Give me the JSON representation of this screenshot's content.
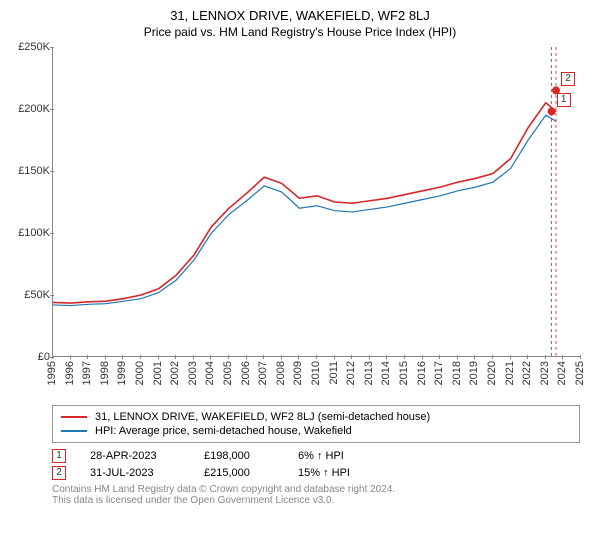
{
  "title": "31, LENNOX DRIVE, WAKEFIELD, WF2 8LJ",
  "subtitle": "Price paid vs. HM Land Registry's House Price Index (HPI)",
  "chart": {
    "type": "line",
    "ylim": [
      0,
      250000
    ],
    "ytick_step": 50000,
    "ytick_labels": [
      "£0",
      "£50K",
      "£100K",
      "£150K",
      "£200K",
      "£250K"
    ],
    "xlim": [
      1995,
      2025
    ],
    "xticks": [
      1995,
      1996,
      1997,
      1998,
      1999,
      2000,
      2001,
      2002,
      2003,
      2004,
      2005,
      2006,
      2007,
      2008,
      2009,
      2010,
      2011,
      2012,
      2013,
      2014,
      2015,
      2016,
      2017,
      2018,
      2019,
      2020,
      2021,
      2022,
      2023,
      2024,
      2025
    ],
    "background_color": "#ffffff",
    "axis_color": "#888888",
    "series": [
      {
        "name": "31, LENNOX DRIVE, WAKEFIELD, WF2 8LJ (semi-detached house)",
        "color": "#d62728",
        "width": 1.6,
        "data": [
          [
            1995,
            44000
          ],
          [
            1996,
            43500
          ],
          [
            1997,
            44500
          ],
          [
            1998,
            45000
          ],
          [
            1999,
            47000
          ],
          [
            2000,
            50000
          ],
          [
            2001,
            55000
          ],
          [
            2002,
            66000
          ],
          [
            2003,
            82000
          ],
          [
            2004,
            105000
          ],
          [
            2005,
            120000
          ],
          [
            2006,
            132000
          ],
          [
            2007,
            145000
          ],
          [
            2008,
            140000
          ],
          [
            2009,
            128000
          ],
          [
            2010,
            130000
          ],
          [
            2011,
            125000
          ],
          [
            2012,
            124000
          ],
          [
            2013,
            126000
          ],
          [
            2014,
            128000
          ],
          [
            2015,
            131000
          ],
          [
            2016,
            134000
          ],
          [
            2017,
            137000
          ],
          [
            2018,
            141000
          ],
          [
            2019,
            144000
          ],
          [
            2020,
            148000
          ],
          [
            2021,
            160000
          ],
          [
            2022,
            185000
          ],
          [
            2023,
            205000
          ],
          [
            2023.6,
            198000
          ]
        ]
      },
      {
        "name": "HPI: Average price, semi-detached house, Wakefield",
        "color": "#1f77b4",
        "width": 1.2,
        "data": [
          [
            1995,
            42000
          ],
          [
            1996,
            41500
          ],
          [
            1997,
            42500
          ],
          [
            1998,
            43000
          ],
          [
            1999,
            45000
          ],
          [
            2000,
            47000
          ],
          [
            2001,
            52000
          ],
          [
            2002,
            62000
          ],
          [
            2003,
            78000
          ],
          [
            2004,
            100000
          ],
          [
            2005,
            115000
          ],
          [
            2006,
            126000
          ],
          [
            2007,
            138000
          ],
          [
            2008,
            133000
          ],
          [
            2009,
            120000
          ],
          [
            2010,
            122000
          ],
          [
            2011,
            118000
          ],
          [
            2012,
            117000
          ],
          [
            2013,
            119000
          ],
          [
            2014,
            121000
          ],
          [
            2015,
            124000
          ],
          [
            2016,
            127000
          ],
          [
            2017,
            130000
          ],
          [
            2018,
            134000
          ],
          [
            2019,
            137000
          ],
          [
            2020,
            141000
          ],
          [
            2021,
            152000
          ],
          [
            2022,
            175000
          ],
          [
            2023,
            195000
          ],
          [
            2023.6,
            190000
          ]
        ]
      }
    ],
    "sale_markers": [
      {
        "n": "1",
        "x": 2023.33,
        "y": 198000,
        "color": "#d62728"
      },
      {
        "n": "2",
        "x": 2023.58,
        "y": 215000,
        "color": "#d62728"
      }
    ],
    "marker_guide_color": "#d62728",
    "marker_guide_dash": "3,3"
  },
  "legend": {
    "items": [
      {
        "label": "31, LENNOX DRIVE, WAKEFIELD, WF2 8LJ (semi-detached house)",
        "color": "#d62728"
      },
      {
        "label": "HPI: Average price, semi-detached house, Wakefield",
        "color": "#1f77b4"
      }
    ]
  },
  "sales": [
    {
      "n": "1",
      "date": "28-APR-2023",
      "price": "£198,000",
      "pct": "6% ↑ HPI",
      "color": "#d62728"
    },
    {
      "n": "2",
      "date": "31-JUL-2023",
      "price": "£215,000",
      "pct": "15% ↑ HPI",
      "color": "#d62728"
    }
  ],
  "footer": {
    "line1": "Contains HM Land Registry data © Crown copyright and database right 2024.",
    "line2": "This data is licensed under the Open Government Licence v3.0."
  }
}
